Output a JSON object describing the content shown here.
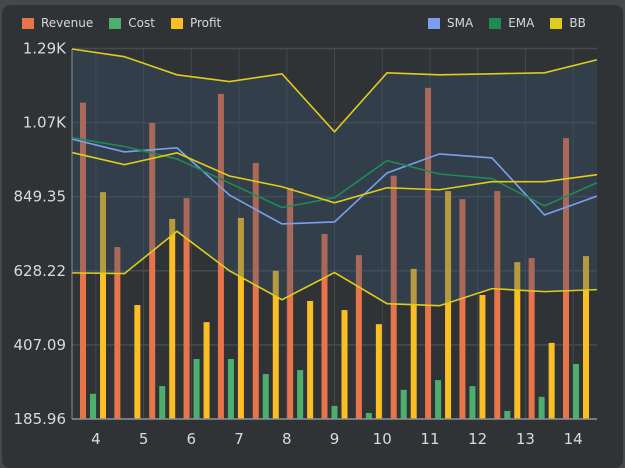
{
  "chart_data": {
    "type": "bar",
    "title": "",
    "xlabel": "",
    "ylabel": "",
    "xlim": [
      3.5,
      14.5
    ],
    "ylim": [
      185.96,
      1290
    ],
    "x_ticks": [
      "4",
      "5",
      "6",
      "7",
      "8",
      "9",
      "10",
      "11",
      "12",
      "13",
      "14"
    ],
    "y_ticks": [
      "185.96",
      "407.09",
      "628.22",
      "849.35",
      "1.07K",
      "1.29K"
    ],
    "y_tick_values": [
      185.96,
      407.09,
      628.22,
      849.35,
      1070.48,
      1291.61
    ],
    "grid": true,
    "legend_placement": "top",
    "bar_x": [
      3.94,
      4.66,
      5.39,
      6.11,
      6.83,
      7.56,
      8.28,
      9.0,
      9.72,
      10.45,
      11.17,
      11.89,
      12.62,
      13.34,
      14.06
    ],
    "bar_series": [
      {
        "name": "Revenue",
        "color": "#e8744a",
        "values": [
          1130,
          699,
          1069,
          845,
          1156,
          950,
          875,
          738,
          675,
          912,
          1174,
          842,
          866,
          666,
          1024
        ]
      },
      {
        "name": "Cost",
        "color": "#4caf6e",
        "values": [
          261,
          170,
          284,
          365,
          365,
          320,
          332,
          225,
          204,
          273,
          302,
          284,
          210,
          252,
          350
        ]
      },
      {
        "name": "Profit",
        "color": "#fbbf24",
        "values": [
          863,
          526,
          783,
          475,
          786,
          628,
          538,
          511,
          469,
          634,
          866,
          556,
          654,
          413,
          672
        ]
      }
    ],
    "line_x": [
      3.5,
      4.6,
      5.7,
      6.8,
      7.9,
      9.0,
      10.1,
      11.2,
      12.3,
      13.4,
      14.5
    ],
    "line_series": [
      {
        "name": "SMA",
        "color": "#7b9ef0",
        "values": [
          1021,
          983,
          995,
          854,
          768,
          774,
          920,
          977,
          965,
          795,
          851
        ]
      },
      {
        "name": "EMA",
        "color": "#1f8a55",
        "values": [
          1025,
          999,
          962,
          890,
          817,
          846,
          957,
          917,
          903,
          822,
          891
        ]
      },
      {
        "name": "BB",
        "color": "#e0cc1a",
        "upper": [
          1290,
          1267,
          1213,
          1193,
          1216,
          1043,
          1219,
          1213,
          1216,
          1219,
          1258
        ],
        "middle": [
          981,
          945,
          980,
          911,
          879,
          831,
          876,
          870,
          894,
          894,
          915
        ],
        "lower": [
          622,
          620,
          746,
          628,
          542,
          623,
          530,
          524,
          575,
          566,
          572
        ]
      }
    ]
  },
  "legend_left": [
    {
      "label": "Revenue",
      "color": "#e8744a"
    },
    {
      "label": "Cost",
      "color": "#4caf6e"
    },
    {
      "label": "Profit",
      "color": "#fbbf24"
    }
  ],
  "legend_right": [
    {
      "label": "SMA",
      "color": "#7b9ef0"
    },
    {
      "label": "EMA",
      "color": "#1f8a55"
    },
    {
      "label": "BB",
      "color": "#e0cc1a"
    }
  ]
}
